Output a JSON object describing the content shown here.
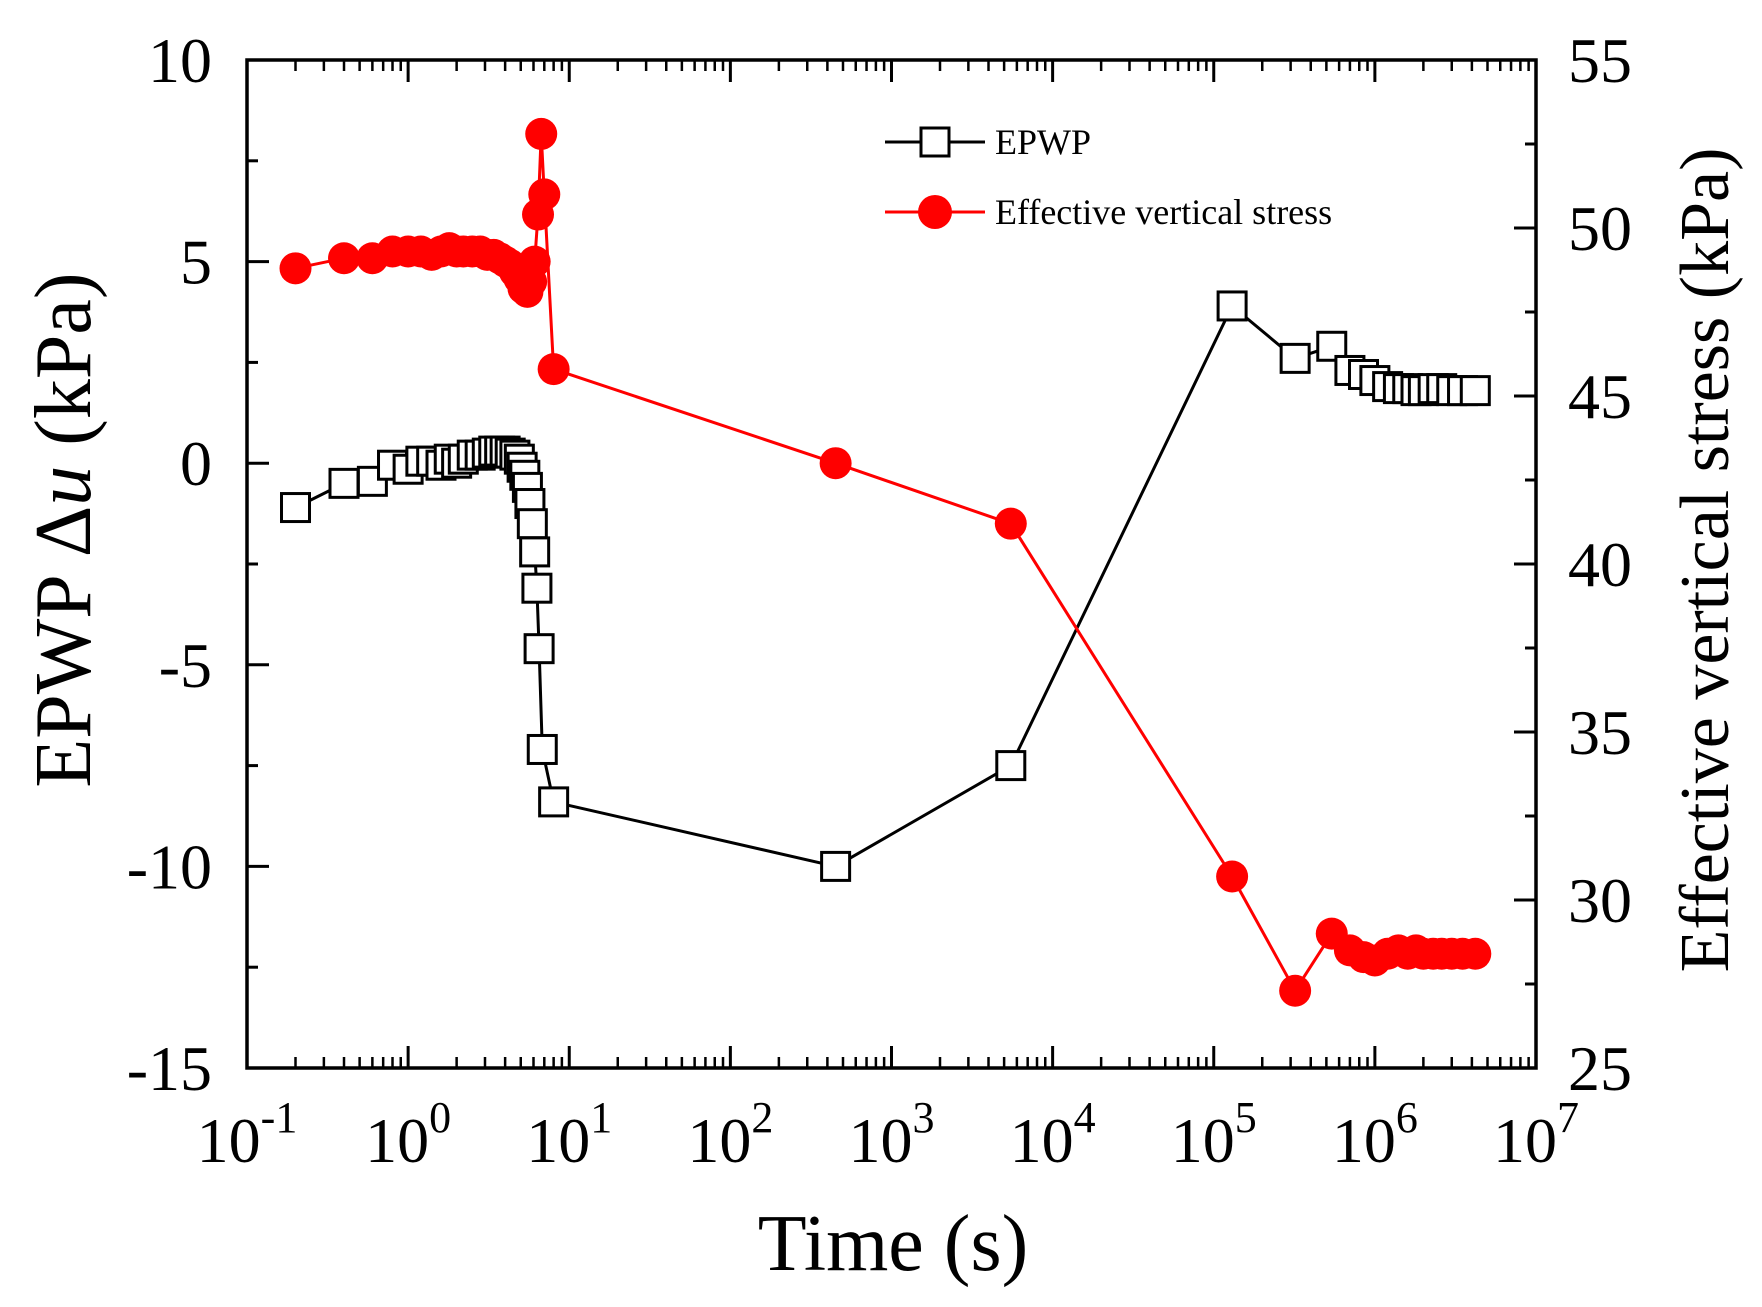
{
  "chart_data": {
    "type": "line",
    "xscale": "log",
    "xlabel": "Time (s)",
    "ylabel_left_prefix": "EPWP Δ",
    "ylabel_left_var": "u",
    "ylabel_left_suffix": " (kPa)",
    "ylabel_right": "Effective vertical stress (kPa)",
    "xlim": [
      0.1,
      10000000
    ],
    "ylim_left": [
      -15,
      10
    ],
    "ylim_right": [
      25,
      55
    ],
    "x_ticks": [
      {
        "base": "10",
        "exp": "-1",
        "value": 0.1
      },
      {
        "base": "10",
        "exp": "0",
        "value": 1
      },
      {
        "base": "10",
        "exp": "1",
        "value": 10
      },
      {
        "base": "10",
        "exp": "2",
        "value": 100
      },
      {
        "base": "10",
        "exp": "3",
        "value": 1000
      },
      {
        "base": "10",
        "exp": "4",
        "value": 10000
      },
      {
        "base": "10",
        "exp": "5",
        "value": 100000
      },
      {
        "base": "10",
        "exp": "6",
        "value": 1000000
      },
      {
        "base": "10",
        "exp": "7",
        "value": 10000000
      }
    ],
    "y_left_ticks": [
      {
        "label": "10",
        "value": 10
      },
      {
        "label": "5",
        "value": 5
      },
      {
        "label": "0",
        "value": 0
      },
      {
        "label": "-5",
        "value": -5
      },
      {
        "label": "-10",
        "value": -10
      },
      {
        "label": "-15",
        "value": -15
      }
    ],
    "y_right_ticks": [
      {
        "label": "55",
        "value": 55
      },
      {
        "label": "50",
        "value": 50
      },
      {
        "label": "45",
        "value": 45
      },
      {
        "label": "40",
        "value": 40
      },
      {
        "label": "35",
        "value": 35
      },
      {
        "label": "30",
        "value": 30
      },
      {
        "label": "25",
        "value": 25
      }
    ],
    "legend_position": "top-right",
    "series": [
      {
        "name": "EPWP",
        "axis": "left",
        "marker": "open-square",
        "color": "#000000",
        "points": [
          [
            0.2,
            -1.1
          ],
          [
            0.4,
            -0.5
          ],
          [
            0.6,
            -0.45
          ],
          [
            0.8,
            -0.05
          ],
          [
            1.0,
            -0.15
          ],
          [
            1.2,
            0.05
          ],
          [
            1.4,
            0.05
          ],
          [
            1.6,
            -0.05
          ],
          [
            1.8,
            0.1
          ],
          [
            2.0,
            0.0
          ],
          [
            2.2,
            0.1
          ],
          [
            2.5,
            0.2
          ],
          [
            2.8,
            0.2
          ],
          [
            3.1,
            0.25
          ],
          [
            3.4,
            0.3
          ],
          [
            3.7,
            0.3
          ],
          [
            4.0,
            0.3
          ],
          [
            4.3,
            0.25
          ],
          [
            4.6,
            0.2
          ],
          [
            4.9,
            0.1
          ],
          [
            5.1,
            -0.1
          ],
          [
            5.3,
            -0.3
          ],
          [
            5.5,
            -0.6
          ],
          [
            5.7,
            -1.0
          ],
          [
            5.9,
            -1.5
          ],
          [
            6.1,
            -2.2
          ],
          [
            6.3,
            -3.1
          ],
          [
            6.5,
            -4.6
          ],
          [
            6.8,
            -7.1
          ],
          [
            8.0,
            -8.4
          ],
          [
            450,
            -10.0
          ],
          [
            5500,
            -7.5
          ],
          [
            130000,
            3.9
          ],
          [
            320000,
            2.6
          ],
          [
            540000,
            2.9
          ],
          [
            700000,
            2.3
          ],
          [
            850000,
            2.2
          ],
          [
            1000000,
            2.05
          ],
          [
            1200000,
            1.9
          ],
          [
            1400000,
            1.85
          ],
          [
            1600000,
            1.85
          ],
          [
            1800000,
            1.8
          ],
          [
            2000000,
            1.8
          ],
          [
            2300000,
            1.85
          ],
          [
            2600000,
            1.85
          ],
          [
            3000000,
            1.8
          ],
          [
            3500000,
            1.8
          ],
          [
            4200000,
            1.8
          ]
        ]
      },
      {
        "name": "Effective vertical stress",
        "axis": "right",
        "marker": "filled-circle",
        "color": "#ff0000",
        "points": [
          [
            0.2,
            48.8
          ],
          [
            0.4,
            49.1
          ],
          [
            0.6,
            49.1
          ],
          [
            0.8,
            49.3
          ],
          [
            1.0,
            49.3
          ],
          [
            1.2,
            49.3
          ],
          [
            1.4,
            49.2
          ],
          [
            1.6,
            49.3
          ],
          [
            1.8,
            49.4
          ],
          [
            2.0,
            49.3
          ],
          [
            2.2,
            49.3
          ],
          [
            2.5,
            49.3
          ],
          [
            2.8,
            49.3
          ],
          [
            3.1,
            49.2
          ],
          [
            3.4,
            49.2
          ],
          [
            3.7,
            49.1
          ],
          [
            4.0,
            49.0
          ],
          [
            4.3,
            48.9
          ],
          [
            4.6,
            48.7
          ],
          [
            4.9,
            48.5
          ],
          [
            5.2,
            48.2
          ],
          [
            5.5,
            48.1
          ],
          [
            5.8,
            48.4
          ],
          [
            6.1,
            49.0
          ],
          [
            6.4,
            50.4
          ],
          [
            6.7,
            52.8
          ],
          [
            7.0,
            51.0
          ],
          [
            8.0,
            45.8
          ],
          [
            450,
            43.0
          ],
          [
            5500,
            41.2
          ],
          [
            130000,
            30.7
          ],
          [
            320000,
            27.3
          ],
          [
            540000,
            29.0
          ],
          [
            700000,
            28.5
          ],
          [
            850000,
            28.3
          ],
          [
            1000000,
            28.2
          ],
          [
            1200000,
            28.4
          ],
          [
            1400000,
            28.5
          ],
          [
            1600000,
            28.4
          ],
          [
            1800000,
            28.5
          ],
          [
            2000000,
            28.4
          ],
          [
            2300000,
            28.4
          ],
          [
            2600000,
            28.4
          ],
          [
            3000000,
            28.4
          ],
          [
            3500000,
            28.4
          ],
          [
            4200000,
            28.4
          ]
        ]
      }
    ]
  }
}
